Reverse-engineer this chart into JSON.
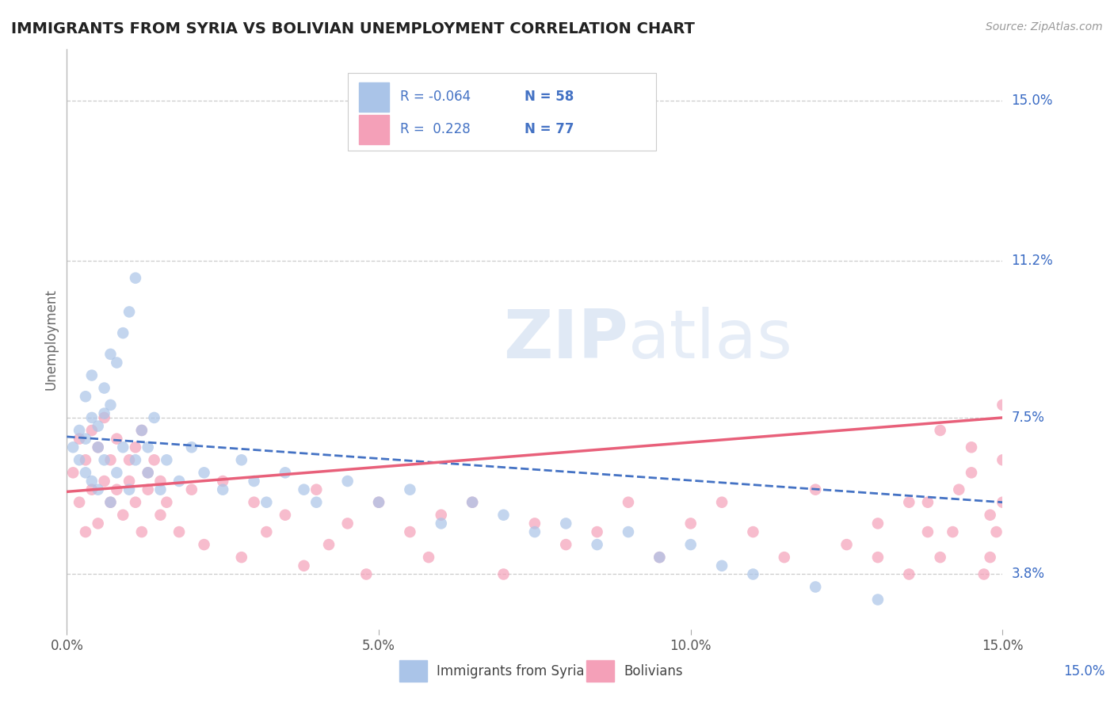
{
  "title": "IMMIGRANTS FROM SYRIA VS BOLIVIAN UNEMPLOYMENT CORRELATION CHART",
  "source": "Source: ZipAtlas.com",
  "ylabel": "Unemployment",
  "y_ticks_right": [
    "15.0%",
    "11.2%",
    "7.5%",
    "3.8%"
  ],
  "y_tick_vals": [
    0.15,
    0.112,
    0.075,
    0.038
  ],
  "xmin": 0.0,
  "xmax": 0.15,
  "ymin": 0.025,
  "ymax": 0.162,
  "color_syria": "#aac4e8",
  "color_bolivia": "#f4a0b8",
  "line_color_syria": "#4472c4",
  "line_color_bolivia": "#e8607a",
  "watermark_zip": "ZIP",
  "watermark_atlas": "atlas",
  "legend_label1": "Immigrants from Syria",
  "legend_label2": "Bolivians",
  "syria_x": [
    0.001,
    0.002,
    0.002,
    0.003,
    0.003,
    0.003,
    0.004,
    0.004,
    0.004,
    0.005,
    0.005,
    0.005,
    0.006,
    0.006,
    0.006,
    0.007,
    0.007,
    0.007,
    0.008,
    0.008,
    0.009,
    0.009,
    0.01,
    0.01,
    0.011,
    0.011,
    0.012,
    0.013,
    0.013,
    0.014,
    0.015,
    0.016,
    0.018,
    0.02,
    0.022,
    0.025,
    0.028,
    0.03,
    0.032,
    0.035,
    0.038,
    0.04,
    0.045,
    0.05,
    0.055,
    0.06,
    0.065,
    0.07,
    0.075,
    0.08,
    0.085,
    0.09,
    0.095,
    0.1,
    0.105,
    0.11,
    0.12,
    0.13
  ],
  "syria_y": [
    0.068,
    0.072,
    0.065,
    0.08,
    0.062,
    0.07,
    0.075,
    0.06,
    0.085,
    0.068,
    0.073,
    0.058,
    0.082,
    0.065,
    0.076,
    0.09,
    0.055,
    0.078,
    0.088,
    0.062,
    0.095,
    0.068,
    0.1,
    0.058,
    0.108,
    0.065,
    0.072,
    0.062,
    0.068,
    0.075,
    0.058,
    0.065,
    0.06,
    0.068,
    0.062,
    0.058,
    0.065,
    0.06,
    0.055,
    0.062,
    0.058,
    0.055,
    0.06,
    0.055,
    0.058,
    0.05,
    0.055,
    0.052,
    0.048,
    0.05,
    0.045,
    0.048,
    0.042,
    0.045,
    0.04,
    0.038,
    0.035,
    0.032
  ],
  "bolivia_x": [
    0.001,
    0.002,
    0.002,
    0.003,
    0.003,
    0.004,
    0.004,
    0.005,
    0.005,
    0.006,
    0.006,
    0.007,
    0.007,
    0.008,
    0.008,
    0.009,
    0.01,
    0.01,
    0.011,
    0.011,
    0.012,
    0.012,
    0.013,
    0.013,
    0.014,
    0.015,
    0.015,
    0.016,
    0.018,
    0.02,
    0.022,
    0.025,
    0.028,
    0.03,
    0.032,
    0.035,
    0.038,
    0.04,
    0.042,
    0.045,
    0.048,
    0.05,
    0.055,
    0.058,
    0.06,
    0.065,
    0.07,
    0.075,
    0.08,
    0.085,
    0.09,
    0.095,
    0.1,
    0.105,
    0.11,
    0.115,
    0.12,
    0.125,
    0.13,
    0.135,
    0.138,
    0.14,
    0.142,
    0.145,
    0.147,
    0.148,
    0.15,
    0.15,
    0.15,
    0.149,
    0.148,
    0.145,
    0.143,
    0.14,
    0.138,
    0.135,
    0.13
  ],
  "bolivia_y": [
    0.062,
    0.055,
    0.07,
    0.048,
    0.065,
    0.058,
    0.072,
    0.05,
    0.068,
    0.06,
    0.075,
    0.055,
    0.065,
    0.058,
    0.07,
    0.052,
    0.065,
    0.06,
    0.068,
    0.055,
    0.072,
    0.048,
    0.062,
    0.058,
    0.065,
    0.052,
    0.06,
    0.055,
    0.048,
    0.058,
    0.045,
    0.06,
    0.042,
    0.055,
    0.048,
    0.052,
    0.04,
    0.058,
    0.045,
    0.05,
    0.038,
    0.055,
    0.048,
    0.042,
    0.052,
    0.055,
    0.038,
    0.05,
    0.045,
    0.048,
    0.055,
    0.042,
    0.05,
    0.055,
    0.048,
    0.042,
    0.058,
    0.045,
    0.05,
    0.038,
    0.055,
    0.042,
    0.048,
    0.062,
    0.038,
    0.042,
    0.078,
    0.055,
    0.065,
    0.048,
    0.052,
    0.068,
    0.058,
    0.072,
    0.048,
    0.055,
    0.042
  ]
}
